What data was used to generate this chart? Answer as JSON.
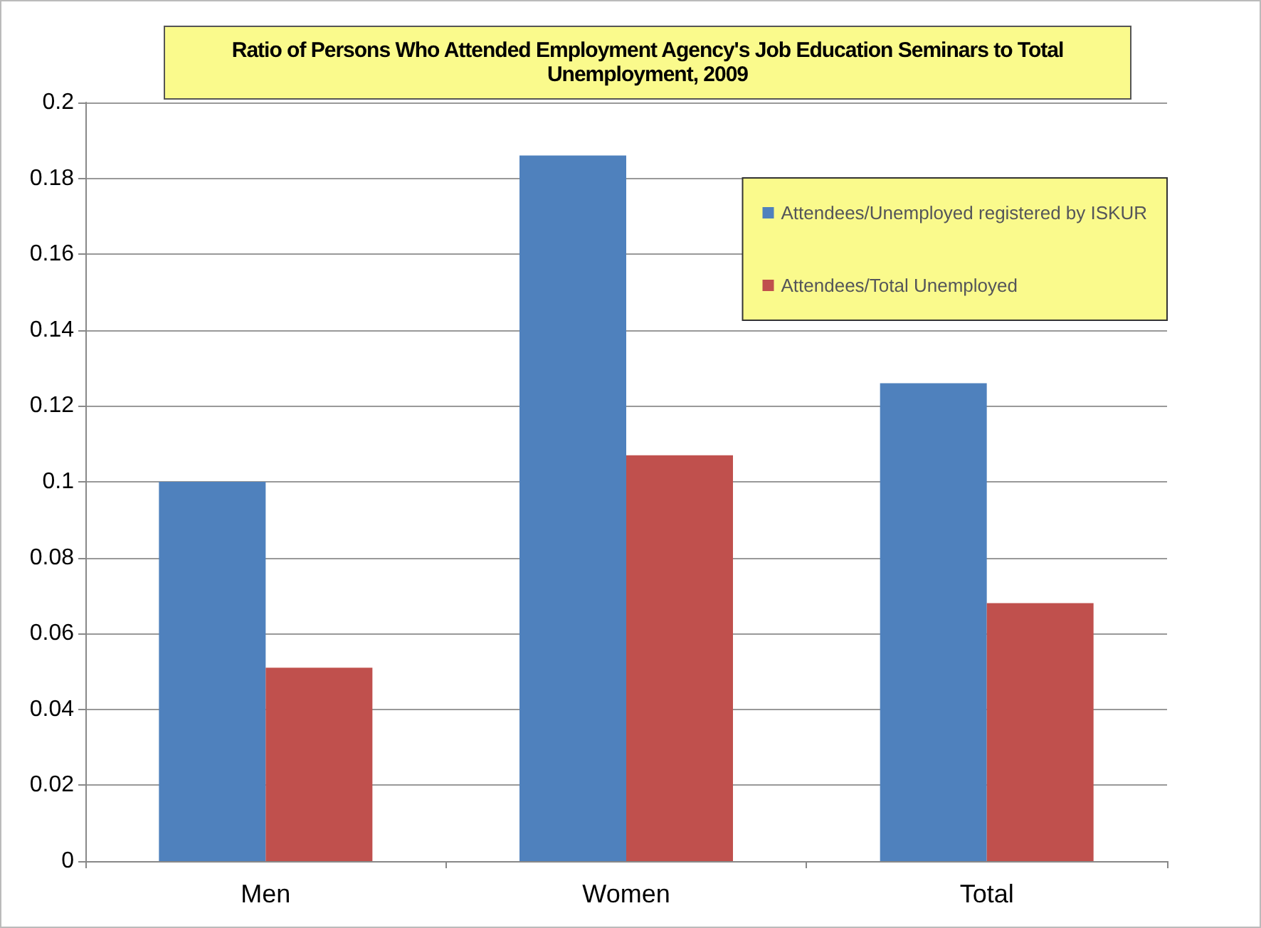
{
  "chart_data": {
    "type": "bar",
    "title": "Ratio of Persons Who Attended Employment Agency's Job Education Seminars to Total Unemployment, 2009",
    "categories": [
      "Men",
      "Women",
      "Total"
    ],
    "series": [
      {
        "name": "Attendees/Unemployed registered by ISKUR",
        "color": "#4f81bd",
        "values": [
          0.1,
          0.186,
          0.126
        ]
      },
      {
        "name": "Attendees/Total Unemployed",
        "color": "#c0504d",
        "values": [
          0.051,
          0.107,
          0.068
        ]
      }
    ],
    "ylim": [
      0,
      0.2
    ],
    "yticks": [
      0,
      0.02,
      0.04,
      0.06,
      0.08,
      0.1,
      0.12,
      0.14,
      0.16,
      0.18,
      0.2
    ],
    "grid": "y",
    "legend": "top right"
  }
}
